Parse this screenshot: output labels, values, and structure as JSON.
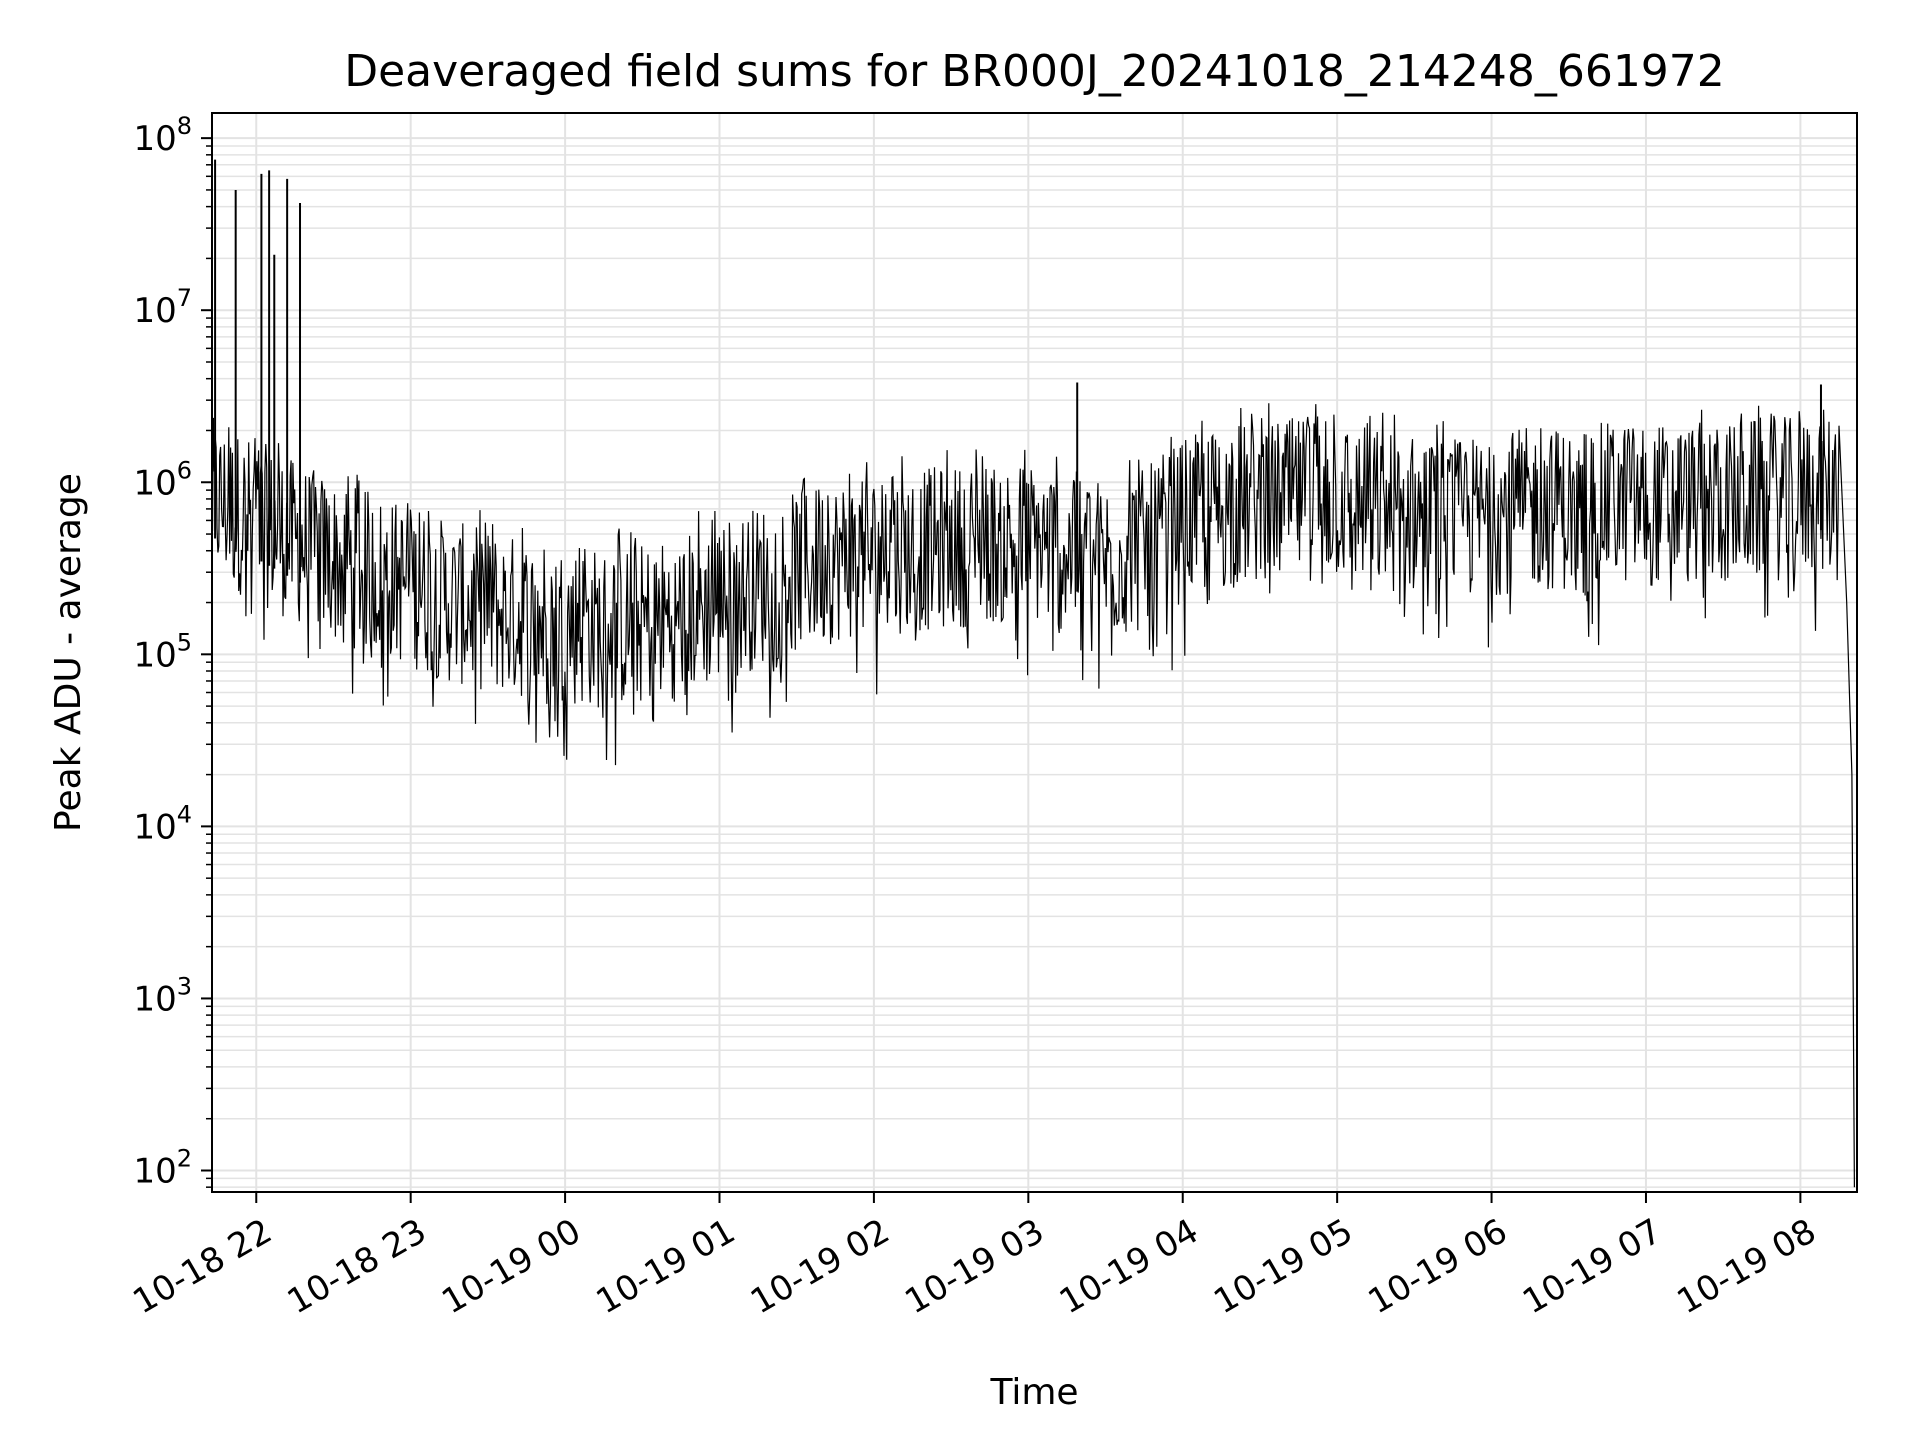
{
  "chart_data": {
    "type": "line",
    "title": "Deaveraged field sums for BR000J_20241018_214248_661972",
    "xlabel": "Time",
    "ylabel": "Peak ADU - average",
    "y_scale": "log",
    "ylim": [
      75,
      140000000
    ],
    "xlim": [
      "2024-10-18 21:42:48",
      "2024-10-19 08:22:00"
    ],
    "grid": true,
    "line_color": "#000000",
    "grid_color": "#e3e3e3",
    "x_ticks": [
      {
        "label": "10-18 22",
        "time": "2024-10-18 22:00"
      },
      {
        "label": "10-18 23",
        "time": "2024-10-18 23:00"
      },
      {
        "label": "10-19 00",
        "time": "2024-10-19 00:00"
      },
      {
        "label": "10-19 01",
        "time": "2024-10-19 01:00"
      },
      {
        "label": "10-19 02",
        "time": "2024-10-19 02:00"
      },
      {
        "label": "10-19 03",
        "time": "2024-10-19 03:00"
      },
      {
        "label": "10-19 04",
        "time": "2024-10-19 04:00"
      },
      {
        "label": "10-19 05",
        "time": "2024-10-19 05:00"
      },
      {
        "label": "10-19 06",
        "time": "2024-10-19 06:00"
      },
      {
        "label": "10-19 07",
        "time": "2024-10-19 07:00"
      },
      {
        "label": "10-19 08",
        "time": "2024-10-19 08:00"
      }
    ],
    "y_ticks": [
      {
        "base": "10",
        "exp": "2",
        "value": 100
      },
      {
        "base": "10",
        "exp": "3",
        "value": 1000
      },
      {
        "base": "10",
        "exp": "4",
        "value": 10000
      },
      {
        "base": "10",
        "exp": "5",
        "value": 100000
      },
      {
        "base": "10",
        "exp": "6",
        "value": 1000000
      },
      {
        "base": "10",
        "exp": "7",
        "value": 10000000
      },
      {
        "base": "10",
        "exp": "8",
        "value": 100000000
      }
    ],
    "series": [
      {
        "x": [
          "2024-10-18 21:43",
          "2024-10-18 21:50",
          "2024-10-18 22:00",
          "2024-10-18 22:15",
          "2024-10-18 22:30",
          "2024-10-18 22:45",
          "2024-10-18 23:00",
          "2024-10-18 23:15",
          "2024-10-18 23:30",
          "2024-10-18 23:45",
          "2024-10-19 00:00",
          "2024-10-19 00:15",
          "2024-10-19 00:30",
          "2024-10-19 00:45",
          "2024-10-19 01:00",
          "2024-10-19 01:15",
          "2024-10-19 01:30",
          "2024-10-19 01:45",
          "2024-10-19 02:00",
          "2024-10-19 02:15",
          "2024-10-19 02:30",
          "2024-10-19 02:45",
          "2024-10-19 03:00",
          "2024-10-19 03:15",
          "2024-10-19 03:30",
          "2024-10-19 03:45",
          "2024-10-19 04:00",
          "2024-10-19 04:15",
          "2024-10-19 04:30",
          "2024-10-19 04:45",
          "2024-10-19 05:00",
          "2024-10-19 05:15",
          "2024-10-19 05:30",
          "2024-10-19 05:45",
          "2024-10-19 06:00",
          "2024-10-19 06:15",
          "2024-10-19 06:30",
          "2024-10-19 06:45",
          "2024-10-19 07:00",
          "2024-10-19 07:15",
          "2024-10-19 07:30",
          "2024-10-19 07:45",
          "2024-10-19 08:00",
          "2024-10-19 08:10",
          "2024-10-19 08:15",
          "2024-10-19 08:18",
          "2024-10-19 08:20",
          "2024-10-19 08:21"
        ],
        "y": [
          800000,
          700000,
          600000,
          450000,
          350000,
          300000,
          250000,
          200000,
          180000,
          160000,
          150000,
          140000,
          150000,
          170000,
          200000,
          250000,
          300000,
          350000,
          380000,
          400000,
          420000,
          450000,
          450000,
          400000,
          350000,
          400000,
          600000,
          700000,
          750000,
          800000,
          800000,
          700000,
          650000,
          600000,
          650000,
          700000,
          700000,
          750000,
          750000,
          750000,
          750000,
          800000,
          800000,
          900000,
          700000,
          200000,
          20000,
          80
        ]
      }
    ],
    "spikes": [
      {
        "time": "2024-10-18 21:44",
        "value": 75000000
      },
      {
        "time": "2024-10-18 21:52",
        "value": 50000000
      },
      {
        "time": "2024-10-18 22:02",
        "value": 62000000
      },
      {
        "time": "2024-10-18 22:05",
        "value": 65000000
      },
      {
        "time": "2024-10-18 22:07",
        "value": 21000000
      },
      {
        "time": "2024-10-18 22:12",
        "value": 58000000
      },
      {
        "time": "2024-10-18 22:17",
        "value": 42000000
      },
      {
        "time": "2024-10-19 03:19",
        "value": 3800000
      },
      {
        "time": "2024-10-19 08:08",
        "value": 3700000
      }
    ]
  }
}
